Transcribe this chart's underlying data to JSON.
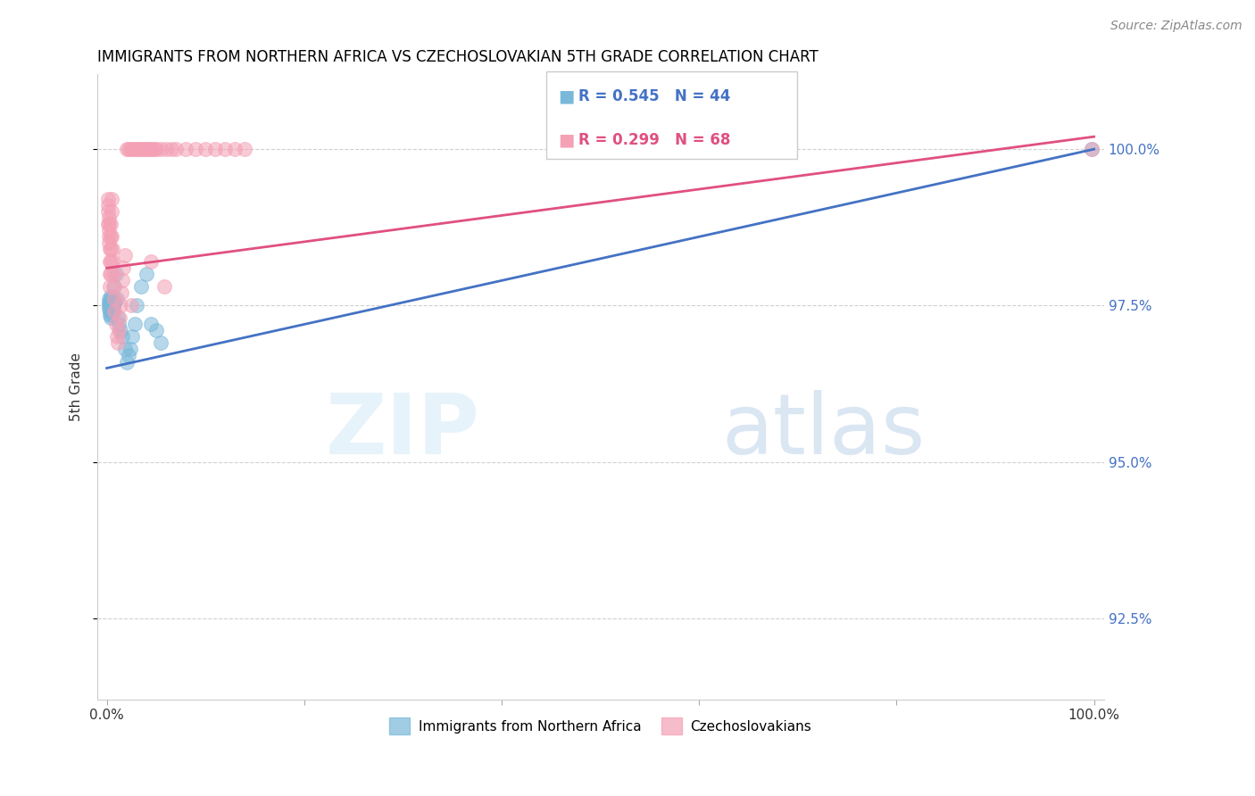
{
  "title": "IMMIGRANTS FROM NORTHERN AFRICA VS CZECHOSLOVAKIAN 5TH GRADE CORRELATION CHART",
  "source": "Source: ZipAtlas.com",
  "ylabel": "5th Grade",
  "y_ticks": [
    92.5,
    95.0,
    97.5,
    100.0
  ],
  "legend_blue_r": "R = 0.545",
  "legend_blue_n": "N = 44",
  "legend_pink_r": "R = 0.299",
  "legend_pink_n": "N = 68",
  "blue_color": "#7ab8d9",
  "pink_color": "#f4a0b5",
  "blue_line_color": "#4472c4",
  "pink_line_color": "#e05080",
  "blue_scatter_x": [
    0.2,
    0.22,
    0.24,
    0.26,
    0.28,
    0.3,
    0.32,
    0.34,
    0.36,
    0.38,
    0.4,
    0.42,
    0.44,
    0.46,
    0.48,
    0.5,
    0.52,
    0.54,
    0.56,
    0.58,
    0.6,
    0.65,
    0.7,
    0.75,
    0.8,
    0.9,
    1.0,
    1.1,
    1.2,
    1.4,
    1.6,
    1.8,
    2.0,
    2.2,
    2.4,
    2.6,
    2.8,
    3.0,
    3.5,
    4.0,
    4.5,
    5.0,
    5.5,
    99.8
  ],
  "blue_scatter_y": [
    97.5,
    97.55,
    97.45,
    97.6,
    97.4,
    97.5,
    97.55,
    97.35,
    97.65,
    97.45,
    97.5,
    97.3,
    97.6,
    97.4,
    97.55,
    97.35,
    97.45,
    97.5,
    97.55,
    97.4,
    97.6,
    97.45,
    97.5,
    97.55,
    97.8,
    98.0,
    97.6,
    97.3,
    97.2,
    97.1,
    97.0,
    96.8,
    96.6,
    96.7,
    96.8,
    97.0,
    97.2,
    97.5,
    97.8,
    98.0,
    97.2,
    97.1,
    96.9,
    100.0
  ],
  "pink_scatter_x": [
    0.1,
    0.12,
    0.14,
    0.16,
    0.18,
    0.2,
    0.22,
    0.24,
    0.26,
    0.28,
    0.3,
    0.32,
    0.34,
    0.36,
    0.38,
    0.4,
    0.42,
    0.44,
    0.46,
    0.48,
    0.5,
    0.55,
    0.6,
    0.65,
    0.7,
    0.75,
    0.8,
    0.9,
    1.0,
    1.1,
    1.2,
    1.3,
    1.4,
    1.5,
    1.6,
    1.7,
    1.8,
    2.0,
    2.2,
    2.4,
    2.6,
    2.8,
    3.0,
    3.2,
    3.4,
    3.6,
    3.8,
    4.0,
    4.2,
    4.4,
    4.6,
    4.8,
    5.0,
    5.5,
    6.0,
    6.5,
    7.0,
    8.0,
    9.0,
    10.0,
    11.0,
    12.0,
    13.0,
    14.0,
    2.5,
    4.5,
    99.8,
    5.8
  ],
  "pink_scatter_y": [
    99.0,
    99.2,
    98.8,
    99.1,
    98.9,
    98.7,
    98.5,
    98.8,
    98.6,
    98.4,
    98.2,
    98.0,
    97.8,
    98.0,
    98.2,
    98.4,
    98.6,
    98.8,
    99.0,
    99.2,
    98.6,
    98.4,
    98.2,
    98.0,
    97.8,
    97.6,
    97.4,
    97.2,
    97.0,
    96.9,
    97.1,
    97.3,
    97.5,
    97.7,
    97.9,
    98.1,
    98.3,
    100.0,
    100.0,
    100.0,
    100.0,
    100.0,
    100.0,
    100.0,
    100.0,
    100.0,
    100.0,
    100.0,
    100.0,
    100.0,
    100.0,
    100.0,
    100.0,
    100.0,
    100.0,
    100.0,
    100.0,
    100.0,
    100.0,
    100.0,
    100.0,
    100.0,
    100.0,
    100.0,
    97.5,
    98.2,
    100.0,
    97.8
  ],
  "blue_line": {
    "x0": 0.0,
    "y0": 96.5,
    "x1": 100.0,
    "y1": 100.0
  },
  "pink_line": {
    "x0": 0.0,
    "y0": 98.1,
    "x1": 100.0,
    "y1": 100.2
  },
  "xlim": [
    -1,
    101
  ],
  "ylim": [
    91.2,
    101.2
  ],
  "y_right_color": "#4472c4",
  "grid_color": "#d0d0d0",
  "title_fontsize": 12,
  "tick_fontsize": 11,
  "source_fontsize": 10
}
